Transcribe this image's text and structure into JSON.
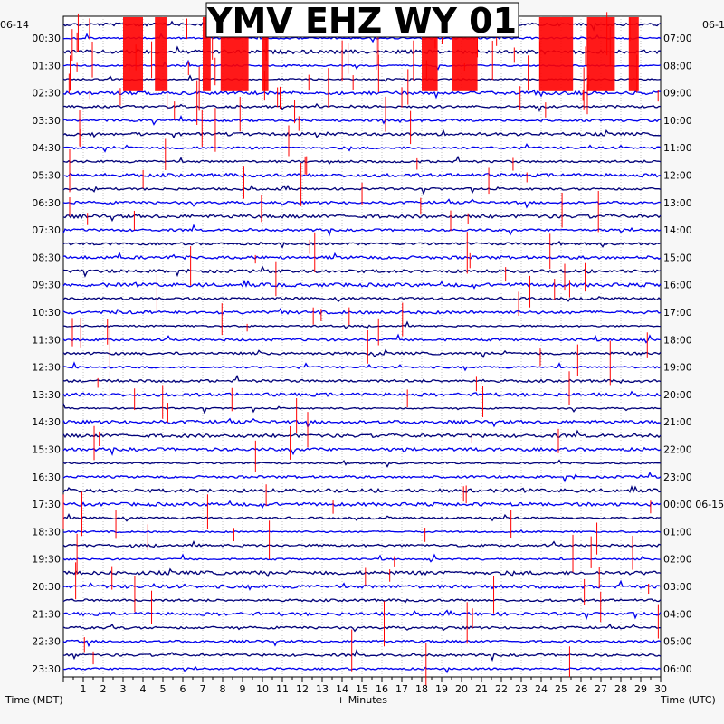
{
  "chart_data": {
    "type": "line",
    "title": "YMV EHZ WY 01",
    "left_date": "06-14",
    "right_date": "06-1",
    "left_axis_label": "Time (MDT)",
    "right_axis_label": "Time (UTC)",
    "x_axis_label": "+ Minutes",
    "x_ticks": [
      "1",
      "2",
      "3",
      "4",
      "5",
      "6",
      "7",
      "8",
      "9",
      "10",
      "11",
      "12",
      "13",
      "14",
      "15",
      "16",
      "17",
      "18",
      "19",
      "20",
      "21",
      "22",
      "23",
      "24",
      "25",
      "26",
      "27",
      "28",
      "29",
      "30"
    ],
    "xlim": [
      0,
      30
    ],
    "left_ticks": [
      "00:30",
      "01:30",
      "02:30",
      "03:30",
      "04:30",
      "05:30",
      "06:30",
      "07:30",
      "08:30",
      "09:30",
      "10:30",
      "11:30",
      "12:30",
      "13:30",
      "14:30",
      "15:30",
      "16:30",
      "17:30",
      "18:30",
      "19:30",
      "20:30",
      "21:30",
      "22:30",
      "23:30"
    ],
    "right_ticks": [
      "07:00",
      "08:00",
      "09:00",
      "10:00",
      "11:00",
      "12:00",
      "13:00",
      "14:00",
      "15:00",
      "16:00",
      "17:00",
      "18:00",
      "19:00",
      "20:00",
      "21:00",
      "22:00",
      "23:00",
      "00:00 06-15",
      "01:00",
      "02:00",
      "03:00",
      "04:00",
      "05:00",
      "06:00"
    ],
    "trace_count": 48,
    "trace_colors": [
      "#00007a",
      "#0000ee"
    ],
    "clip_color": "#ff0000",
    "grid": true
  }
}
